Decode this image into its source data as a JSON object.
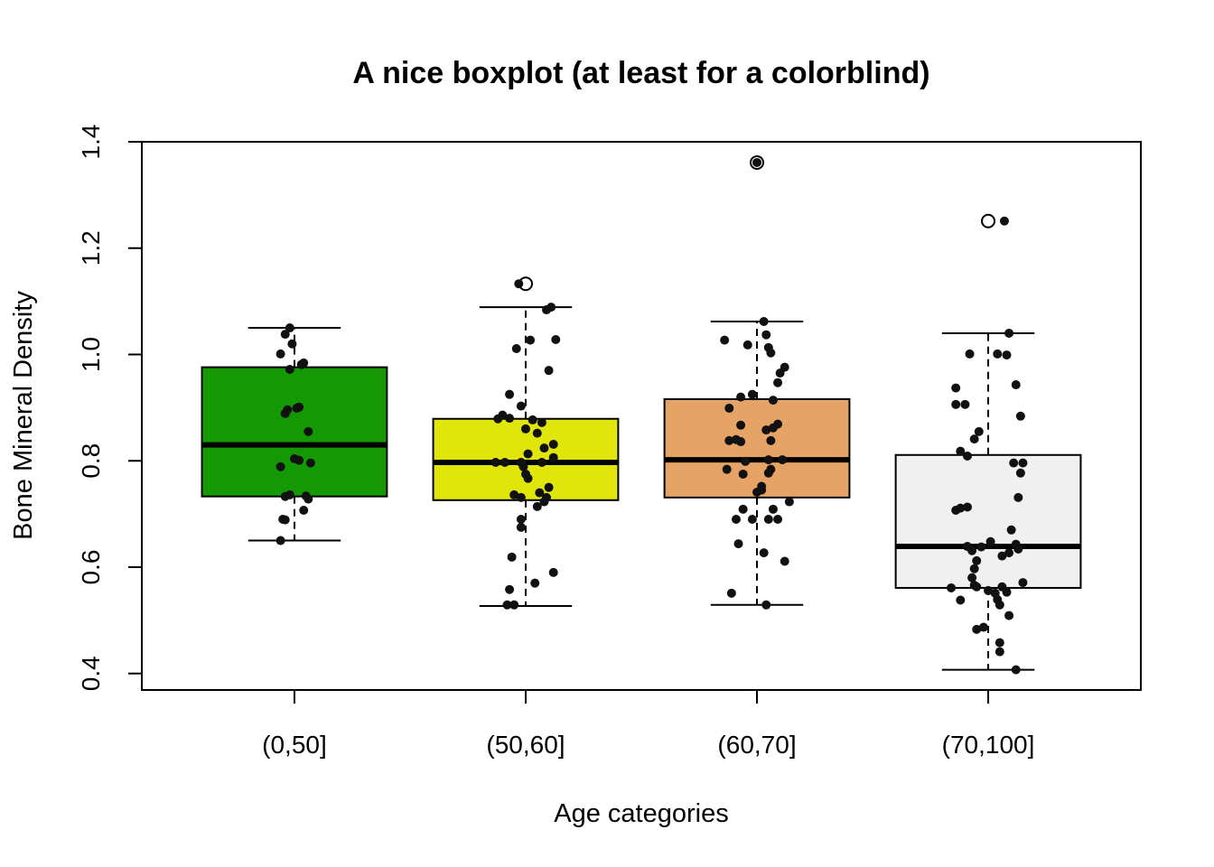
{
  "chart_data": {
    "type": "boxplot",
    "title": "A nice boxplot (at least for a colorblind)",
    "xlabel": "Age categories",
    "ylabel": "Bone Mineral Density",
    "ylim": [
      0.369,
      1.4
    ],
    "xlim": [
      0.34,
      4.66
    ],
    "yticks": [
      0.4,
      0.6,
      0.8,
      1.0,
      1.2,
      1.4
    ],
    "ytick_labels": [
      "0.4",
      "0.6",
      "0.8",
      "1.0",
      "1.2",
      "1.4"
    ],
    "categories": [
      "(0,50]",
      "(50,60]",
      "(60,70]",
      "(70,100]"
    ],
    "boxes": [
      {
        "category": "(0,50]",
        "color": "#149905",
        "whisker_low": 0.65,
        "q1": 0.733,
        "median": 0.83,
        "q3": 0.976,
        "whisker_high": 1.05,
        "outliers": []
      },
      {
        "category": "(50,60]",
        "color": "#e0e50a",
        "whisker_low": 0.527,
        "q1": 0.726,
        "median": 0.797,
        "q3": 0.879,
        "whisker_high": 1.089,
        "outliers": [
          1.133
        ]
      },
      {
        "category": "(60,70]",
        "color": "#e5a365",
        "whisker_low": 0.529,
        "q1": 0.731,
        "median": 0.802,
        "q3": 0.916,
        "whisker_high": 1.062,
        "outliers": [
          1.361
        ]
      },
      {
        "category": "(70,100]",
        "color": "#f0f0f0",
        "whisker_low": 0.407,
        "q1": 0.561,
        "median": 0.639,
        "q3": 0.811,
        "whisker_high": 1.04,
        "outliers": [
          1.251
        ]
      }
    ],
    "jitter_points": [
      [
        [
          -0.02,
          1.05
        ],
        [
          -0.04,
          1.038
        ],
        [
          -0.01,
          1.02
        ],
        [
          -0.06,
          1.001
        ],
        [
          -0.02,
          0.972
        ],
        [
          0.04,
          0.984
        ],
        [
          0.03,
          0.981
        ],
        [
          -0.03,
          0.896
        ],
        [
          -0.04,
          0.889
        ],
        [
          0.01,
          0.899
        ],
        [
          0.02,
          0.901
        ],
        [
          0.06,
          0.855
        ],
        [
          -0.06,
          0.789
        ],
        [
          0.0,
          0.804
        ],
        [
          0.02,
          0.801
        ],
        [
          0.07,
          0.796
        ],
        [
          -0.04,
          0.733
        ],
        [
          -0.02,
          0.736
        ],
        [
          0.05,
          0.734
        ],
        [
          0.06,
          0.728
        ],
        [
          0.04,
          0.707
        ],
        [
          -0.05,
          0.69
        ],
        [
          -0.04,
          0.689
        ],
        [
          -0.06,
          0.65
        ]
      ],
      [
        [
          -0.03,
          1.133
        ],
        [
          0.11,
          1.089
        ],
        [
          0.09,
          1.084
        ],
        [
          0.02,
          1.027
        ],
        [
          0.13,
          1.028
        ],
        [
          -0.04,
          1.011
        ],
        [
          0.1,
          0.97
        ],
        [
          -0.07,
          0.925
        ],
        [
          -0.02,
          0.903
        ],
        [
          -0.1,
          0.886
        ],
        [
          -0.12,
          0.879
        ],
        [
          -0.07,
          0.88
        ],
        [
          0.03,
          0.877
        ],
        [
          0.07,
          0.872
        ],
        [
          0.0,
          0.86
        ],
        [
          0.05,
          0.852
        ],
        [
          0.12,
          0.831
        ],
        [
          0.08,
          0.824
        ],
        [
          0.01,
          0.813
        ],
        [
          -0.13,
          0.797
        ],
        [
          -0.09,
          0.797
        ],
        [
          -0.02,
          0.797
        ],
        [
          0.07,
          0.797
        ],
        [
          0.12,
          0.806
        ],
        [
          -0.01,
          0.789
        ],
        [
          0.0,
          0.775
        ],
        [
          0.01,
          0.767
        ],
        [
          0.1,
          0.75
        ],
        [
          0.06,
          0.74
        ],
        [
          -0.05,
          0.736
        ],
        [
          -0.02,
          0.731
        ],
        [
          0.09,
          0.731
        ],
        [
          0.08,
          0.723
        ],
        [
          0.05,
          0.714
        ],
        [
          -0.02,
          0.69
        ],
        [
          -0.02,
          0.675
        ],
        [
          -0.06,
          0.619
        ],
        [
          0.12,
          0.59
        ],
        [
          0.04,
          0.57
        ],
        [
          -0.07,
          0.558
        ],
        [
          -0.08,
          0.529
        ],
        [
          -0.05,
          0.529
        ]
      ],
      [
        [
          0.0,
          1.361
        ],
        [
          0.03,
          1.062
        ],
        [
          -0.14,
          1.027
        ],
        [
          -0.04,
          1.018
        ],
        [
          0.04,
          1.037
        ],
        [
          0.05,
          1.013
        ],
        [
          0.06,
          1.003
        ],
        [
          0.12,
          0.976
        ],
        [
          0.1,
          0.965
        ],
        [
          0.09,
          0.947
        ],
        [
          -0.07,
          0.92
        ],
        [
          -0.02,
          0.925
        ],
        [
          0.07,
          0.914
        ],
        [
          -0.12,
          0.899
        ],
        [
          -0.07,
          0.867
        ],
        [
          0.04,
          0.858
        ],
        [
          0.07,
          0.862
        ],
        [
          0.09,
          0.869
        ],
        [
          -0.12,
          0.838
        ],
        [
          -0.07,
          0.836
        ],
        [
          -0.09,
          0.84
        ],
        [
          0.06,
          0.838
        ],
        [
          -0.13,
          0.784
        ],
        [
          -0.06,
          0.775
        ],
        [
          0.05,
          0.802
        ],
        [
          0.11,
          0.802
        ],
        [
          -0.05,
          0.799
        ],
        [
          0.06,
          0.784
        ],
        [
          0.05,
          0.777
        ],
        [
          0.02,
          0.745
        ],
        [
          0.0,
          0.741
        ],
        [
          0.02,
          0.752
        ],
        [
          0.14,
          0.723
        ],
        [
          -0.06,
          0.709
        ],
        [
          0.07,
          0.709
        ],
        [
          -0.09,
          0.69
        ],
        [
          -0.02,
          0.69
        ],
        [
          0.05,
          0.69
        ],
        [
          0.09,
          0.69
        ],
        [
          -0.08,
          0.644
        ],
        [
          0.03,
          0.627
        ],
        [
          0.12,
          0.611
        ],
        [
          -0.11,
          0.551
        ],
        [
          0.04,
          0.529
        ]
      ],
      [
        [
          0.07,
          1.251
        ],
        [
          0.09,
          1.04
        ],
        [
          -0.08,
          1.001
        ],
        [
          0.04,
          1.001
        ],
        [
          0.08,
          0.999
        ],
        [
          0.12,
          0.943
        ],
        [
          -0.14,
          0.937
        ],
        [
          -0.14,
          0.906
        ],
        [
          -0.1,
          0.906
        ],
        [
          0.14,
          0.884
        ],
        [
          -0.04,
          0.855
        ],
        [
          -0.06,
          0.841
        ],
        [
          -0.12,
          0.818
        ],
        [
          -0.09,
          0.809
        ],
        [
          0.11,
          0.796
        ],
        [
          0.15,
          0.796
        ],
        [
          0.14,
          0.777
        ],
        [
          0.13,
          0.731
        ],
        [
          -0.12,
          0.711
        ],
        [
          -0.14,
          0.707
        ],
        [
          -0.09,
          0.713
        ],
        [
          0.1,
          0.67
        ],
        [
          -0.09,
          0.639
        ],
        [
          -0.03,
          0.638
        ],
        [
          0.01,
          0.648
        ],
        [
          -0.07,
          0.631
        ],
        [
          0.12,
          0.643
        ],
        [
          0.09,
          0.627
        ],
        [
          0.13,
          0.634
        ],
        [
          0.06,
          0.621
        ],
        [
          -0.05,
          0.612
        ],
        [
          -0.06,
          0.597
        ],
        [
          -0.07,
          0.58
        ],
        [
          -0.06,
          0.566
        ],
        [
          -0.16,
          0.561
        ],
        [
          -0.05,
          0.563
        ],
        [
          0.0,
          0.556
        ],
        [
          0.03,
          0.551
        ],
        [
          0.06,
          0.563
        ],
        [
          0.08,
          0.553
        ],
        [
          0.15,
          0.571
        ],
        [
          0.04,
          0.539
        ],
        [
          0.05,
          0.529
        ],
        [
          -0.12,
          0.538
        ],
        [
          -0.05,
          0.483
        ],
        [
          -0.02,
          0.487
        ],
        [
          0.09,
          0.509
        ],
        [
          0.05,
          0.458
        ],
        [
          0.05,
          0.441
        ],
        [
          0.12,
          0.407
        ]
      ]
    ],
    "grid": false,
    "legend": "none"
  }
}
